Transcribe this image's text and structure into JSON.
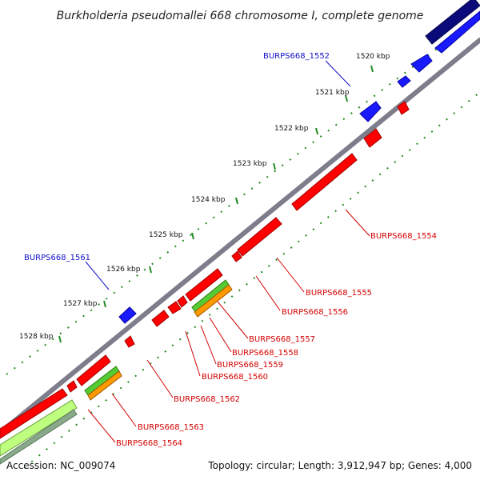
{
  "title": "Burkholderia pseudomallei 668 chromosome I, complete genome",
  "footer": {
    "accession": "Accession: NC_009074",
    "stats": "Topology: circular; Length: 3,912,947 bp; Genes: 4,000"
  },
  "ticks": [
    "1520 kbp",
    "1521 kbp",
    "1522 kbp",
    "1523 kbp",
    "1524 kbp",
    "1525 kbp",
    "1526 kbp",
    "1527 kbp",
    "1528 kbp"
  ],
  "gene_labels": {
    "g1552": "BURPS668_1552",
    "g1554": "BURPS668_1554",
    "g1555": "BURPS668_1555",
    "g1556": "BURPS668_1556",
    "g1557": "BURPS668_1557",
    "g1558": "BURPS668_1558",
    "g1559": "BURPS668_1559",
    "g1560": "BURPS668_1560",
    "g1561": "BURPS668_1561",
    "g1562": "BURPS668_1562",
    "g1563": "BURPS668_1563",
    "g1564": "BURPS668_1564"
  },
  "colors": {
    "forward_gene": "#1a1aff",
    "reverse_gene": "#ff0000",
    "rrna": "#55cc33",
    "trna": "#ff9900",
    "backbone": "#8a8a9a",
    "tick_marks": "#228b22",
    "dark_gene": "#0a0a7a",
    "light_green_gene": "#bfff80"
  }
}
